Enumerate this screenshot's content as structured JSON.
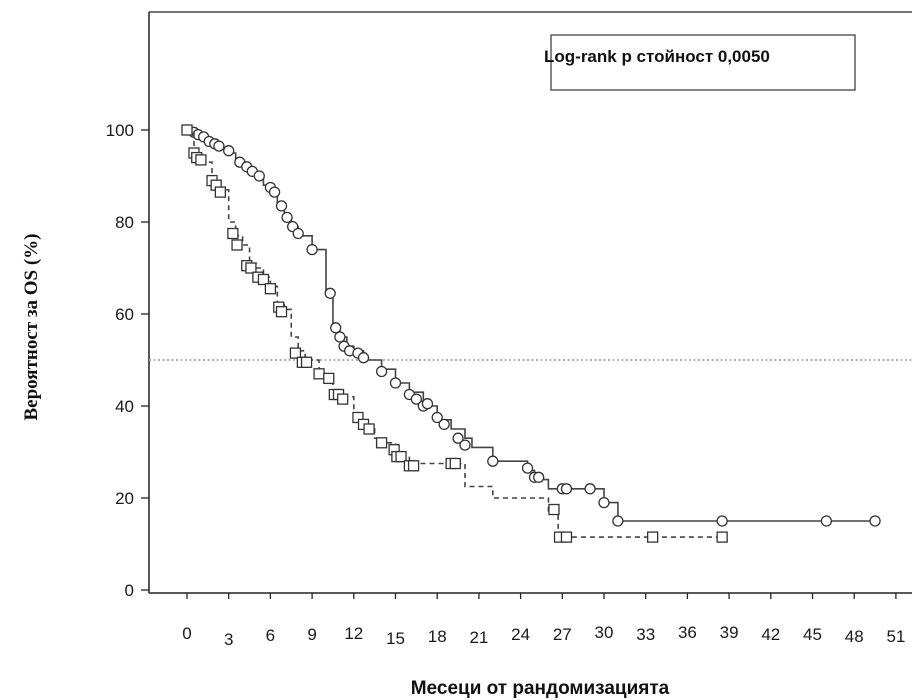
{
  "chart_data": {
    "type": "line",
    "title": "",
    "xlabel": "Месеци от рандомизацията",
    "ylabel": "Вероятност за OS (%)",
    "annotation": "Log-rank p стойност 0,0050",
    "xlim": [
      -1,
      52
    ],
    "ylim": [
      -3,
      103
    ],
    "x_ticks": [
      "0",
      "3",
      "6",
      "9",
      "12",
      "15",
      "18",
      "21",
      "24",
      "27",
      "30",
      "33",
      "36",
      "39",
      "42",
      "45",
      "48",
      "51"
    ],
    "y_ticks": [
      "0",
      "20",
      "40",
      "60",
      "80",
      "100"
    ],
    "reference_line_y": 50,
    "grid": false,
    "series": [
      {
        "marker": "circle",
        "line_style": "solid",
        "steps": [
          [
            0,
            100
          ],
          [
            0.6,
            99
          ],
          [
            1,
            98
          ],
          [
            1.5,
            97
          ],
          [
            2,
            96
          ],
          [
            3,
            95
          ],
          [
            3.5,
            93
          ],
          [
            4,
            92
          ],
          [
            4.5,
            91
          ],
          [
            5,
            90
          ],
          [
            5.5,
            88
          ],
          [
            6,
            86
          ],
          [
            6.5,
            84
          ],
          [
            7,
            81
          ],
          [
            7.5,
            79
          ],
          [
            8,
            77
          ],
          [
            9,
            74
          ],
          [
            10,
            65
          ],
          [
            10.5,
            57
          ],
          [
            11,
            55
          ],
          [
            11.5,
            53
          ],
          [
            12,
            52
          ],
          [
            12.7,
            51
          ],
          [
            13,
            50
          ],
          [
            14,
            48
          ],
          [
            15,
            45
          ],
          [
            16,
            43
          ],
          [
            17,
            40
          ],
          [
            18,
            37
          ],
          [
            19,
            35
          ],
          [
            20,
            33
          ],
          [
            20.5,
            31
          ],
          [
            22,
            28
          ],
          [
            24.5,
            26
          ],
          [
            25,
            24
          ],
          [
            26,
            22
          ],
          [
            27,
            22
          ],
          [
            29,
            22
          ],
          [
            30,
            19
          ],
          [
            31,
            15
          ],
          [
            49.5,
            15
          ]
        ],
        "markers": [
          [
            0,
            100
          ],
          [
            0.5,
            99.5
          ],
          [
            0.8,
            99
          ],
          [
            1.2,
            98.5
          ],
          [
            1.6,
            97.5
          ],
          [
            2,
            97
          ],
          [
            2.3,
            96.5
          ],
          [
            3,
            95.5
          ],
          [
            3.8,
            93
          ],
          [
            4.3,
            92
          ],
          [
            4.7,
            91
          ],
          [
            5.2,
            90
          ],
          [
            6,
            87.5
          ],
          [
            6.3,
            86.5
          ],
          [
            6.8,
            83.5
          ],
          [
            7.2,
            81
          ],
          [
            7.6,
            79
          ],
          [
            8,
            77.5
          ],
          [
            9,
            74
          ],
          [
            10.3,
            64.5
          ],
          [
            10.7,
            57
          ],
          [
            11,
            55
          ],
          [
            11.3,
            53
          ],
          [
            11.7,
            52
          ],
          [
            12.3,
            51.5
          ],
          [
            12.7,
            50.5
          ],
          [
            14,
            47.5
          ],
          [
            15,
            45
          ],
          [
            16,
            42.5
          ],
          [
            16.5,
            41.5
          ],
          [
            17,
            40
          ],
          [
            17.3,
            40.5
          ],
          [
            18,
            37.5
          ],
          [
            18.5,
            36
          ],
          [
            19.5,
            33
          ],
          [
            20,
            31.5
          ],
          [
            22,
            28
          ],
          [
            24.5,
            26.5
          ],
          [
            25,
            24.5
          ],
          [
            25.3,
            24.5
          ],
          [
            27,
            22
          ],
          [
            27.3,
            22
          ],
          [
            29,
            22
          ],
          [
            30,
            19
          ],
          [
            31,
            15
          ],
          [
            38.5,
            15
          ],
          [
            46,
            15
          ],
          [
            49.5,
            15
          ]
        ]
      },
      {
        "marker": "square",
        "line_style": "dashed",
        "steps": [
          [
            0,
            100
          ],
          [
            0.5,
            95
          ],
          [
            1,
            93
          ],
          [
            1.8,
            89
          ],
          [
            2.2,
            87
          ],
          [
            3,
            80
          ],
          [
            3.5,
            77
          ],
          [
            4,
            75
          ],
          [
            4.5,
            71
          ],
          [
            5,
            70
          ],
          [
            5.5,
            68
          ],
          [
            6,
            66
          ],
          [
            6.5,
            62
          ],
          [
            7,
            61
          ],
          [
            7.5,
            55
          ],
          [
            8,
            52
          ],
          [
            8.5,
            50
          ],
          [
            9.5,
            47
          ],
          [
            10,
            46
          ],
          [
            10.5,
            43
          ],
          [
            11,
            42
          ],
          [
            12,
            38
          ],
          [
            12.5,
            37
          ],
          [
            13,
            35
          ],
          [
            13.5,
            33
          ],
          [
            14,
            32
          ],
          [
            15,
            30
          ],
          [
            15.5,
            29
          ],
          [
            16,
            28
          ],
          [
            16.5,
            27.5
          ],
          [
            19,
            27.5
          ],
          [
            20,
            22.5
          ],
          [
            22,
            20
          ],
          [
            24,
            20
          ],
          [
            26,
            17
          ],
          [
            26.7,
            11.5
          ],
          [
            38.5,
            11.5
          ]
        ],
        "markers": [
          [
            0,
            100
          ],
          [
            0.5,
            95
          ],
          [
            0.7,
            94
          ],
          [
            1,
            93.5
          ],
          [
            1.8,
            89
          ],
          [
            2.1,
            88
          ],
          [
            2.4,
            86.5
          ],
          [
            3.3,
            77.5
          ],
          [
            3.6,
            75
          ],
          [
            4.3,
            70.5
          ],
          [
            4.6,
            70
          ],
          [
            5.1,
            68
          ],
          [
            5.5,
            67.5
          ],
          [
            6,
            65.5
          ],
          [
            6.6,
            61.5
          ],
          [
            6.8,
            60.5
          ],
          [
            7.8,
            51.5
          ],
          [
            8.3,
            49.5
          ],
          [
            8.6,
            49.5
          ],
          [
            9.5,
            47
          ],
          [
            10.2,
            46
          ],
          [
            10.6,
            42.5
          ],
          [
            10.9,
            42.5
          ],
          [
            11.2,
            41.5
          ],
          [
            12.3,
            37.5
          ],
          [
            12.7,
            36
          ],
          [
            13.1,
            35
          ],
          [
            14,
            32
          ],
          [
            14.9,
            30.5
          ],
          [
            15.1,
            29
          ],
          [
            15.4,
            29
          ],
          [
            16,
            27
          ],
          [
            16.3,
            27
          ],
          [
            19,
            27.5
          ],
          [
            19.3,
            27.5
          ],
          [
            26.4,
            17.5
          ],
          [
            26.8,
            11.5
          ],
          [
            27.3,
            11.5
          ],
          [
            33.5,
            11.5
          ],
          [
            38.5,
            11.5
          ]
        ]
      }
    ]
  }
}
